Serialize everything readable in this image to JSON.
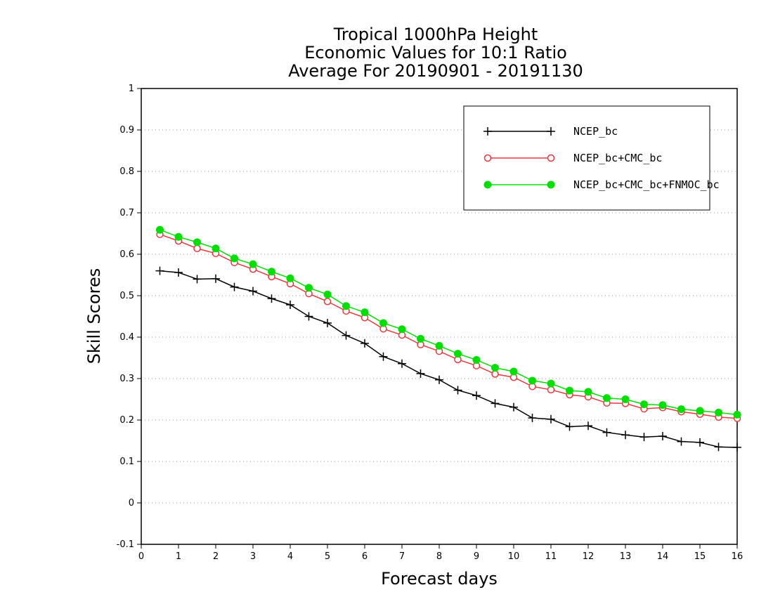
{
  "chart_data": {
    "type": "line",
    "title": [
      "Tropical 1000hPa Height",
      "Economic Values for 10:1 Ratio",
      "Average For 20190901 - 20191130"
    ],
    "xlabel": "Forecast days",
    "ylabel": "Skill Scores",
    "xlim": [
      0,
      16
    ],
    "ylim": [
      -0.1,
      1
    ],
    "xticks": [
      0,
      1,
      2,
      3,
      4,
      5,
      6,
      7,
      8,
      9,
      10,
      11,
      12,
      13,
      14,
      15,
      16
    ],
    "yticks": [
      -0.1,
      0,
      0.1,
      0.2,
      0.3,
      0.4,
      0.5,
      0.6,
      0.7,
      0.8,
      0.9,
      1
    ],
    "ytick_labels": [
      "-0.1",
      "0",
      "0.1",
      "0.2",
      "0.3",
      "0.4",
      "0.5",
      "0.6",
      "0.7",
      "0.8",
      "0.9",
      "1"
    ],
    "grid": "horizontal dotted",
    "legend_position": "top-right",
    "x": [
      0.5,
      1,
      1.5,
      2,
      2.5,
      3,
      3.5,
      4,
      4.5,
      5,
      5.5,
      6,
      6.5,
      7,
      7.5,
      8,
      8.5,
      9,
      9.5,
      10,
      10.5,
      11,
      11.5,
      12,
      12.5,
      13,
      13.5,
      14,
      14.5,
      15,
      15.5,
      16
    ],
    "series": [
      {
        "name": "NCEP_bc",
        "color": "#000000",
        "marker": "plus",
        "values": [
          0.56,
          0.556,
          0.54,
          0.541,
          0.521,
          0.511,
          0.493,
          0.478,
          0.45,
          0.434,
          0.404,
          0.385,
          0.353,
          0.336,
          0.312,
          0.297,
          0.272,
          0.259,
          0.24,
          0.231,
          0.205,
          0.202,
          0.184,
          0.186,
          0.17,
          0.164,
          0.159,
          0.161,
          0.148,
          0.146,
          0.135,
          0.134
        ]
      },
      {
        "name": "NCEP_bc+CMC_bc",
        "color": "#e8383d",
        "marker": "open-circle",
        "values": [
          0.648,
          0.632,
          0.614,
          0.602,
          0.58,
          0.564,
          0.546,
          0.529,
          0.505,
          0.486,
          0.463,
          0.447,
          0.42,
          0.405,
          0.382,
          0.366,
          0.346,
          0.331,
          0.311,
          0.303,
          0.281,
          0.273,
          0.261,
          0.256,
          0.241,
          0.24,
          0.227,
          0.23,
          0.22,
          0.214,
          0.207,
          0.204
        ]
      },
      {
        "name": "NCEP_bc+CMC_bc+FNMOC_bc",
        "color": "#00e000",
        "marker": "filled-circle",
        "values": [
          0.659,
          0.642,
          0.629,
          0.614,
          0.59,
          0.576,
          0.558,
          0.542,
          0.519,
          0.503,
          0.475,
          0.46,
          0.434,
          0.419,
          0.396,
          0.379,
          0.36,
          0.345,
          0.326,
          0.317,
          0.295,
          0.288,
          0.271,
          0.268,
          0.253,
          0.25,
          0.238,
          0.236,
          0.226,
          0.222,
          0.218,
          0.213
        ]
      }
    ]
  }
}
